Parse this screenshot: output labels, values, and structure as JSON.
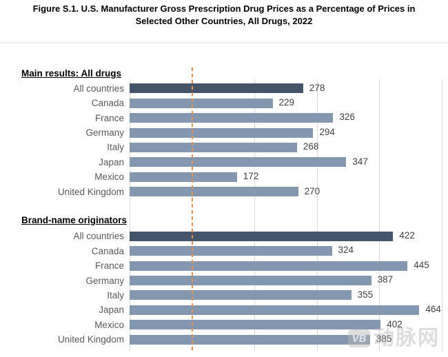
{
  "title": {
    "line1": "Figure S.1. U.S. Manufacturer Gross Prescription Drug Prices as a Percentage of Prices in",
    "line2": "Selected Other Countries, All Drugs, 2022"
  },
  "watermark": {
    "logo": "VB",
    "text": "动脉网"
  },
  "colors": {
    "bar_highlight": "#44546a",
    "bar_default": "#8497b0",
    "reference_line": "#ee9041",
    "gridline": "#d9d9d9",
    "category_label": "#595959",
    "value_label": "#404040",
    "title_text": "#000000"
  },
  "chart_data": {
    "type": "bar",
    "orientation": "horizontal",
    "title": "Figure S.1. U.S. Manufacturer Gross Prescription Drug Prices as a Percentage of Prices in Selected Other Countries, All Drugs, 2022",
    "value_unit": "percent of U.S. price index",
    "x_axis": {
      "min": 0,
      "max": 500,
      "gridlines": [
        200,
        300,
        400,
        500
      ],
      "reference_line": 100,
      "grid_on": true
    },
    "highlight_category": "All countries",
    "groups": [
      {
        "header": "Main results: All drugs",
        "categories": [
          "All countries",
          "Canada",
          "France",
          "Germany",
          "Italy",
          "Japan",
          "Mexico",
          "United Kingdom"
        ],
        "values": [
          278,
          229,
          326,
          294,
          268,
          347,
          172,
          270
        ]
      },
      {
        "header": "Brand-name originators",
        "categories": [
          "All countries",
          "Canada",
          "France",
          "Germany",
          "Italy",
          "Japan",
          "Mexico",
          "United Kingdom"
        ],
        "values": [
          422,
          324,
          445,
          387,
          355,
          464,
          402,
          385
        ]
      }
    ]
  }
}
